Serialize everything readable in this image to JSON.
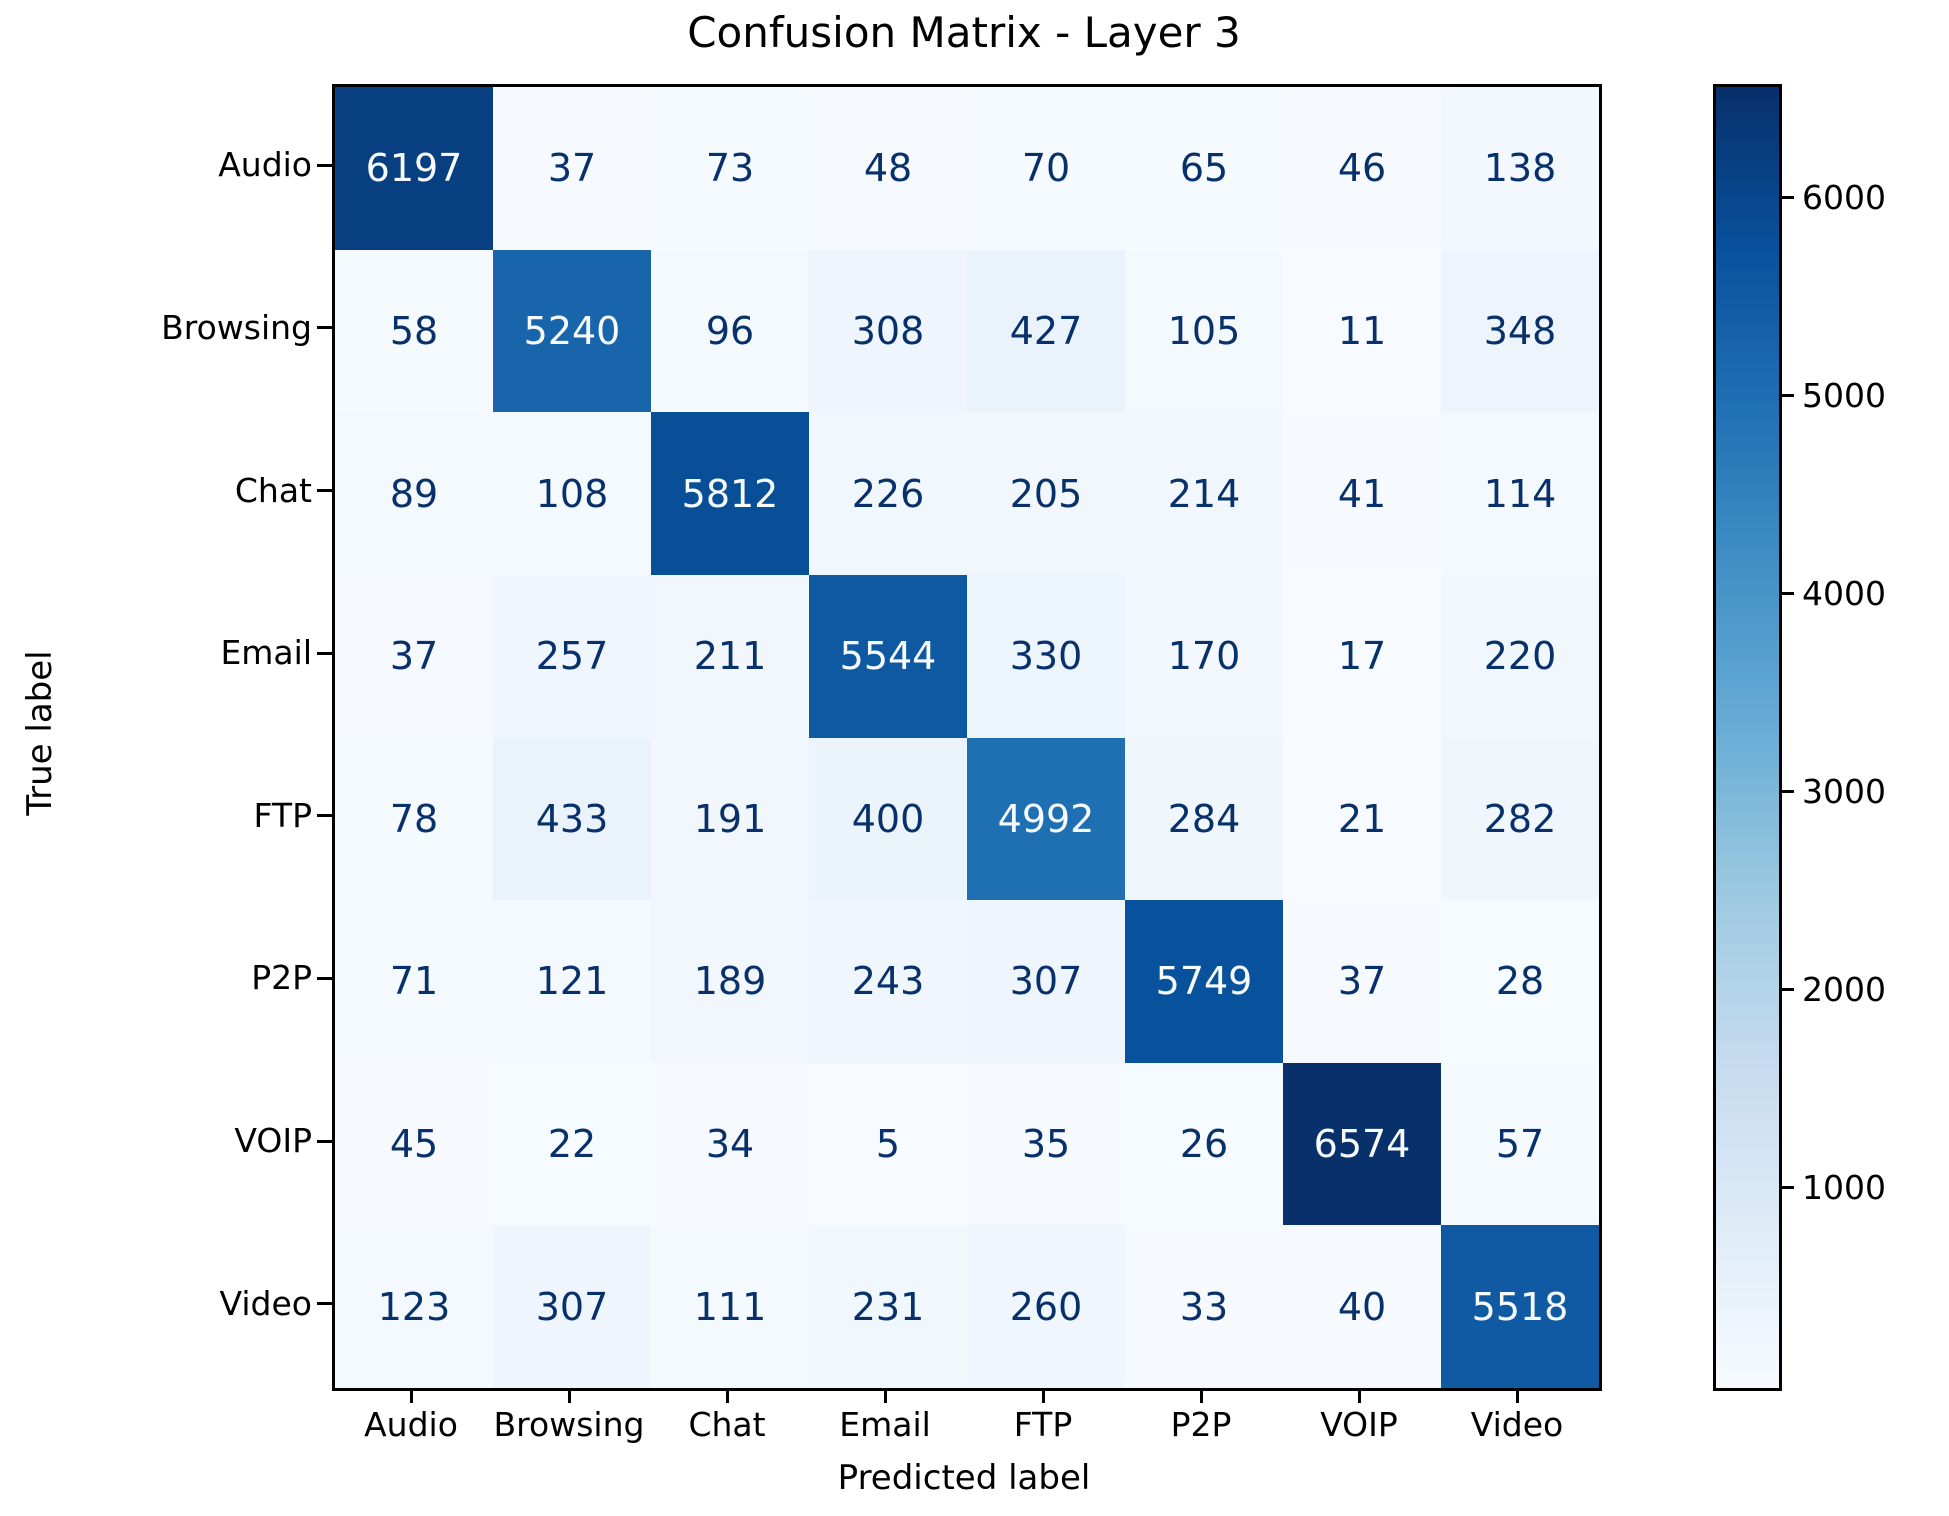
{
  "title": "Confusion Matrix - Layer 3",
  "chart_data": {
    "type": "heatmap",
    "title": "Confusion Matrix - Layer 3",
    "xlabel": "Predicted label",
    "ylabel": "True label",
    "categories": [
      "Audio",
      "Browsing",
      "Chat",
      "Email",
      "FTP",
      "P2P",
      "VOIP",
      "Video"
    ],
    "matrix": [
      [
        6197,
        37,
        73,
        48,
        70,
        65,
        46,
        138
      ],
      [
        58,
        5240,
        96,
        308,
        427,
        105,
        11,
        348
      ],
      [
        89,
        108,
        5812,
        226,
        205,
        214,
        41,
        114
      ],
      [
        37,
        257,
        211,
        5544,
        330,
        170,
        17,
        220
      ],
      [
        78,
        433,
        191,
        400,
        4992,
        284,
        21,
        282
      ],
      [
        71,
        121,
        189,
        243,
        307,
        5749,
        37,
        28
      ],
      [
        45,
        22,
        34,
        5,
        35,
        26,
        6574,
        57
      ],
      [
        123,
        307,
        111,
        231,
        260,
        33,
        40,
        5518
      ]
    ],
    "vmin": 5,
    "vmax": 6574,
    "colormap": "Blues",
    "colorbar_ticks": [
      1000,
      2000,
      3000,
      4000,
      5000,
      6000
    ],
    "legend_position": "right-colorbar",
    "grid": false,
    "colors": {
      "blues_stops": [
        "#f7fbff",
        "#deebf7",
        "#c6dbef",
        "#9ecae1",
        "#6baed6",
        "#4292c6",
        "#2171b5",
        "#08519c",
        "#08306b"
      ],
      "cell_text_light": "#f7fbff",
      "cell_text_dark": "#08306b",
      "axis_border": "#000000"
    }
  }
}
